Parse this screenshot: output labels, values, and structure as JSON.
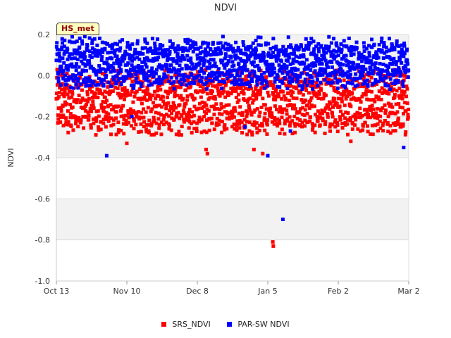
{
  "badge": "HS_met",
  "colors": {
    "srs": "#ff0000",
    "par": "#0000ff",
    "band": "#f2f2f2",
    "grid": "#dddddd"
  },
  "chart_data": {
    "type": "scatter",
    "title": "NDVI",
    "xlabel": "",
    "ylabel": "NDVI",
    "ylim": [
      -1.0,
      0.2
    ],
    "xlim_days": [
      0,
      140
    ],
    "x_ticks": [
      {
        "day": 0,
        "label": "Oct 13"
      },
      {
        "day": 28,
        "label": "Nov 10"
      },
      {
        "day": 56,
        "label": "Dec 8"
      },
      {
        "day": 84,
        "label": "Jan 5"
      },
      {
        "day": 112,
        "label": "Feb 2"
      },
      {
        "day": 140,
        "label": "Mar 2"
      }
    ],
    "y_ticks": [
      {
        "value": 0.2,
        "label": "0.2"
      },
      {
        "value": 0.0,
        "label": "0.0"
      },
      {
        "value": -0.2,
        "label": "-0.2"
      },
      {
        "value": -0.4,
        "label": "-0.4"
      },
      {
        "value": -0.6,
        "label": "-0.6"
      },
      {
        "value": -0.8,
        "label": "-0.8"
      },
      {
        "value": -1.0,
        "label": "-1.0"
      }
    ],
    "series": [
      {
        "name": "SRS_NDVI",
        "color": "#ff0000",
        "day_start": 0,
        "day_end": 140,
        "day_min": -0.24,
        "day_max": -0.02,
        "points_per_day": 10,
        "outliers": [
          [
            28.0,
            -0.33
          ],
          [
            59.5,
            -0.36
          ],
          [
            60.0,
            -0.38
          ],
          [
            86.0,
            -0.81
          ],
          [
            86.2,
            -0.83
          ],
          [
            78.5,
            -0.36
          ],
          [
            82.0,
            -0.38
          ],
          [
            117.0,
            -0.32
          ]
        ]
      },
      {
        "name": "PAR-SW NDVI",
        "color": "#0000ff",
        "day_start": 0,
        "day_end": 140,
        "day_min": -0.02,
        "day_max": 0.14,
        "points_per_day": 10,
        "outliers": [
          [
            20.0,
            -0.39
          ],
          [
            90.0,
            -0.7
          ],
          [
            84.0,
            -0.39
          ],
          [
            138.0,
            -0.35
          ],
          [
            30.0,
            -0.2
          ],
          [
            75.0,
            -0.25
          ],
          [
            93.0,
            -0.27
          ]
        ]
      }
    ]
  }
}
